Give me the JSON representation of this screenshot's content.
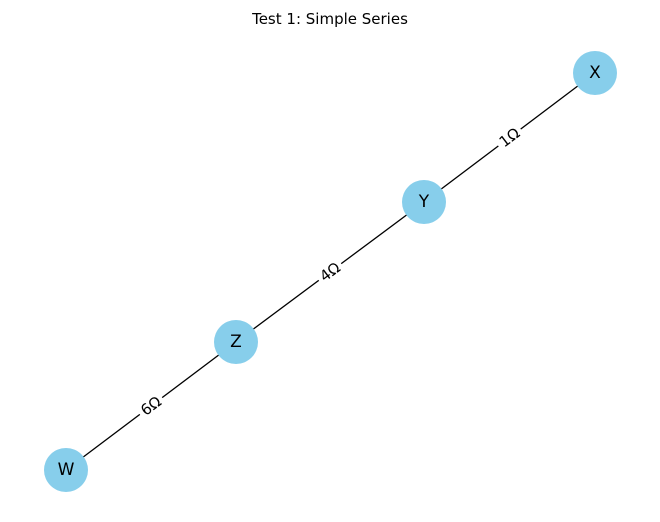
{
  "title": "Test 1: Simple Series",
  "colors": {
    "node_fill": "#87ceeb",
    "edge": "#000000",
    "text": "#000000",
    "background": "#ffffff"
  },
  "nodes": [
    {
      "id": "X",
      "label": "X"
    },
    {
      "id": "Y",
      "label": "Y"
    },
    {
      "id": "Z",
      "label": "Z"
    },
    {
      "id": "W",
      "label": "W"
    }
  ],
  "edges": [
    {
      "from": "X",
      "to": "Y",
      "label": "1Ω"
    },
    {
      "from": "Y",
      "to": "Z",
      "label": "4Ω"
    },
    {
      "from": "Z",
      "to": "W",
      "label": "6Ω"
    }
  ]
}
